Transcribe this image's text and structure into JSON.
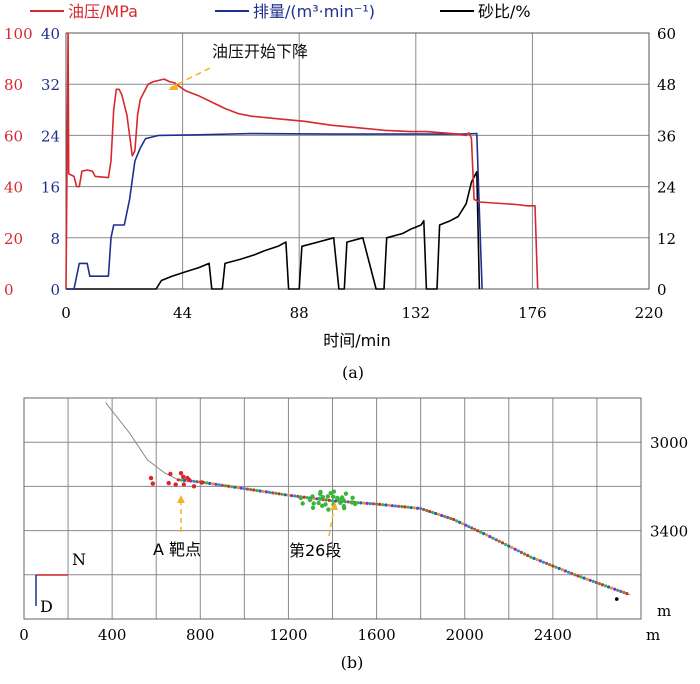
{
  "colors": {
    "pressure": "#d7282f",
    "rate": "#1f2f8f",
    "sand": "#000000",
    "annot": "#f5b324",
    "grid": "#8a8a8a"
  },
  "chart_data": [
    {
      "type": "line",
      "caption": "(a)",
      "xlabel": "时间/min",
      "xlim": [
        0,
        220
      ],
      "x_ticks": [
        "0",
        "44",
        "88",
        "132",
        "176",
        "220"
      ],
      "legend": [
        "油压/MPa",
        "排量/(m³·min⁻¹)",
        "砂比/%"
      ],
      "legend_position": "top",
      "y_left_outer": {
        "ticks": [
          "0",
          "20",
          "40",
          "60",
          "80",
          "100"
        ],
        "ylim": [
          0,
          100
        ]
      },
      "y_left_inner": {
        "ticks": [
          "0",
          "8",
          "16",
          "24",
          "32",
          "40"
        ],
        "ylim": [
          0,
          40
        ]
      },
      "y_right": {
        "ticks": [
          "0",
          "12",
          "24",
          "36",
          "48",
          "60"
        ],
        "ylim": [
          0,
          60
        ]
      },
      "annotation": {
        "text": "油压开始下降",
        "x": 42,
        "y": 80.5
      },
      "grid": true,
      "series": [
        {
          "name": "油压/MPa",
          "points": [
            [
              0,
              0
            ],
            [
              0.8,
              100
            ],
            [
              1,
              45
            ],
            [
              3,
              44
            ],
            [
              4,
              40
            ],
            [
              5,
              40
            ],
            [
              6,
              46
            ],
            [
              8,
              46.5
            ],
            [
              10,
              46
            ],
            [
              11,
              44
            ],
            [
              16,
              43.5
            ],
            [
              17,
              50
            ],
            [
              18,
              70
            ],
            [
              19,
              78
            ],
            [
              20,
              78
            ],
            [
              21,
              76
            ],
            [
              23,
              68
            ],
            [
              24,
              60
            ],
            [
              25,
              52
            ],
            [
              26,
              54
            ],
            [
              27,
              68
            ],
            [
              28,
              74
            ],
            [
              30,
              78
            ],
            [
              31,
              80
            ],
            [
              33,
              81
            ],
            [
              35,
              81.5
            ],
            [
              37,
              82
            ],
            [
              39,
              81
            ],
            [
              41,
              80.5
            ],
            [
              43,
              79
            ],
            [
              45,
              77.5
            ],
            [
              50,
              75.5
            ],
            [
              55,
              73
            ],
            [
              60,
              70.5
            ],
            [
              65,
              68.5
            ],
            [
              70,
              67.5
            ],
            [
              80,
              66.5
            ],
            [
              90,
              65.5
            ],
            [
              100,
              64
            ],
            [
              110,
              63
            ],
            [
              120,
              62
            ],
            [
              130,
              61.5
            ],
            [
              136,
              61.5
            ],
            [
              142,
              61
            ],
            [
              148,
              60.5
            ],
            [
              151,
              60
            ],
            [
              152,
              61
            ],
            [
              153,
              59
            ],
            [
              154,
              35
            ],
            [
              156,
              34
            ],
            [
              170,
              33
            ],
            [
              174,
              32.5
            ],
            [
              177,
              32.5
            ],
            [
              178,
              0
            ]
          ]
        },
        {
          "name": "排量/(m³·min⁻¹)",
          "points": [
            [
              0,
              0
            ],
            [
              3,
              0
            ],
            [
              5,
              4
            ],
            [
              8,
              4
            ],
            [
              9,
              2
            ],
            [
              16,
              2
            ],
            [
              17,
              8
            ],
            [
              18,
              10
            ],
            [
              22,
              10
            ],
            [
              24,
              14
            ],
            [
              26,
              20
            ],
            [
              28,
              22
            ],
            [
              30,
              23.5
            ],
            [
              35,
              24
            ],
            [
              50,
              24.1
            ],
            [
              70,
              24.3
            ],
            [
              100,
              24.2
            ],
            [
              130,
              24.2
            ],
            [
              150,
              24.2
            ],
            [
              155,
              24.3
            ],
            [
              156,
              12
            ],
            [
              157,
              0
            ]
          ]
        },
        {
          "name": "砂比/%",
          "points": [
            [
              0,
              0
            ],
            [
              34,
              0
            ],
            [
              36,
              2
            ],
            [
              40,
              3
            ],
            [
              45,
              4
            ],
            [
              50,
              5
            ],
            [
              54,
              6
            ],
            [
              55,
              0
            ],
            [
              59,
              0
            ],
            [
              60,
              6
            ],
            [
              66,
              7
            ],
            [
              71,
              8
            ],
            [
              75,
              9
            ],
            [
              80,
              10
            ],
            [
              83,
              11
            ],
            [
              84,
              0
            ],
            [
              88,
              0
            ],
            [
              89,
              10
            ],
            [
              95,
              11
            ],
            [
              101,
              12
            ],
            [
              103,
              0
            ],
            [
              105,
              0
            ],
            [
              106,
              11
            ],
            [
              112,
              12
            ],
            [
              117,
              0
            ],
            [
              120,
              0
            ],
            [
              121,
              12
            ],
            [
              127,
              13
            ],
            [
              130,
              14
            ],
            [
              134,
              15
            ],
            [
              135,
              16
            ],
            [
              136,
              0
            ],
            [
              140,
              0
            ],
            [
              141,
              15
            ],
            [
              145,
              16
            ],
            [
              148,
              17
            ],
            [
              151,
              20
            ],
            [
              153,
              25
            ],
            [
              155,
              27.5
            ],
            [
              156,
              0
            ]
          ]
        }
      ]
    },
    {
      "type": "scatter",
      "caption": "(b)",
      "xlabel": "",
      "xlim": [
        0,
        2800
      ],
      "ylim": [
        3800,
        2800
      ],
      "x_ticks": [
        "0",
        "400",
        "800",
        "1200",
        "1600",
        "2000",
        "2400"
      ],
      "x_unit": "m",
      "y_ticks": [
        "3000",
        "3400"
      ],
      "y_unit": "m",
      "compass": {
        "north": "N",
        "down": "D"
      },
      "labels": [
        {
          "text": "A 靶点",
          "x": 700,
          "y": 3200
        },
        {
          "text": "第26段",
          "x": 1390,
          "y": 3250
        }
      ],
      "well_trajectory": [
        [
          370,
          2820
        ],
        [
          480,
          2960
        ],
        [
          560,
          3080
        ],
        [
          640,
          3140
        ],
        [
          700,
          3170
        ],
        [
          800,
          3180
        ],
        [
          1000,
          3210
        ],
        [
          1200,
          3240
        ],
        [
          1400,
          3265
        ],
        [
          1600,
          3280
        ],
        [
          1800,
          3300
        ],
        [
          1950,
          3350
        ],
        [
          2100,
          3420
        ],
        [
          2300,
          3520
        ],
        [
          2500,
          3600
        ],
        [
          2750,
          3690
        ]
      ],
      "event_clusters": [
        {
          "center": [
            705,
            3170
          ],
          "count": 12,
          "color": "#d7282f"
        },
        {
          "center": [
            1385,
            3260
          ],
          "count": 30,
          "color": "#3cb43c"
        }
      ],
      "isolated_point": [
        2690,
        3710
      ]
    }
  ]
}
